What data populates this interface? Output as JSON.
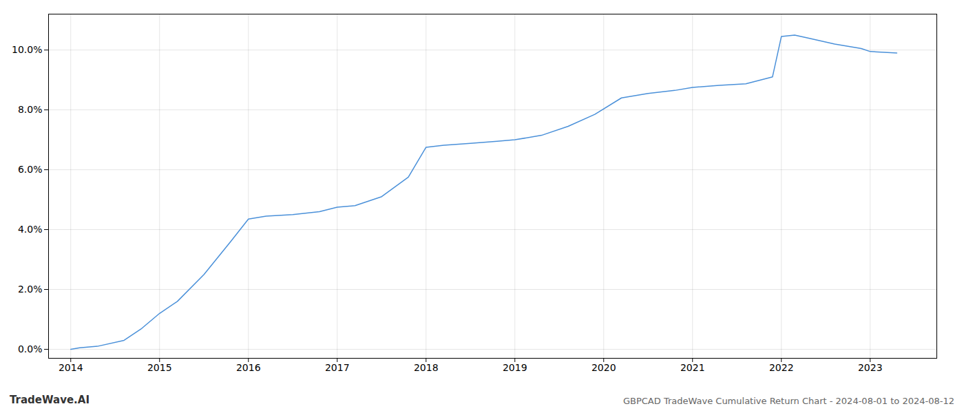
{
  "chart_data": {
    "type": "line",
    "title": "GBPCAD TradeWave Cumulative Return Chart - 2024-08-01 to 2024-08-12",
    "annotations": [
      "TradeWave.AI"
    ],
    "x": [
      2014.0,
      2014.1,
      2014.3,
      2014.6,
      2014.8,
      2015.0,
      2015.2,
      2015.5,
      2015.8,
      2016.0,
      2016.2,
      2016.5,
      2016.8,
      2017.0,
      2017.2,
      2017.5,
      2017.8,
      2018.0,
      2018.2,
      2018.5,
      2018.8,
      2019.0,
      2019.3,
      2019.6,
      2019.9,
      2020.2,
      2020.5,
      2020.8,
      2021.0,
      2021.3,
      2021.6,
      2021.9,
      2022.0,
      2022.15,
      2022.3,
      2022.6,
      2022.9,
      2023.0,
      2023.3
    ],
    "values": [
      0.0,
      0.05,
      0.1,
      0.3,
      0.7,
      1.2,
      1.6,
      2.5,
      3.6,
      4.35,
      4.45,
      4.5,
      4.6,
      4.75,
      4.8,
      5.1,
      5.75,
      6.75,
      6.82,
      6.88,
      6.95,
      7.0,
      7.15,
      7.45,
      7.85,
      8.4,
      8.55,
      8.65,
      8.75,
      8.82,
      8.87,
      9.1,
      10.45,
      10.5,
      10.4,
      10.2,
      10.05,
      9.95,
      9.9
    ],
    "color": "#4a90d9",
    "xlim": [
      2013.75,
      2023.75
    ],
    "xticks": [
      2014,
      2015,
      2016,
      2017,
      2018,
      2019,
      2020,
      2021,
      2022,
      2023
    ],
    "ylim": [
      -0.3,
      11.2
    ],
    "yticks": [
      {
        "value": 0.0,
        "label": "0.0%"
      },
      {
        "value": 2.0,
        "label": "2.0%"
      },
      {
        "value": 4.0,
        "label": "4.0%"
      },
      {
        "value": 6.0,
        "label": "6.0%"
      },
      {
        "value": 8.0,
        "label": "8.0%"
      },
      {
        "value": 10.0,
        "label": "10.0%"
      }
    ],
    "grid": true
  }
}
